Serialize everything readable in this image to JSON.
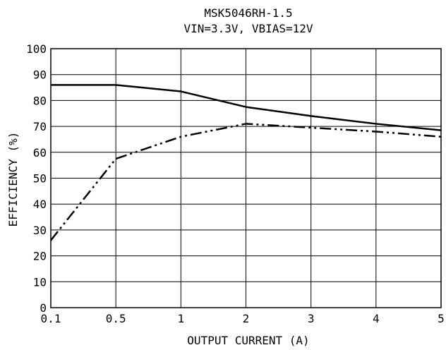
{
  "chart_data": {
    "type": "line",
    "title": "MSK5046RH-1.5",
    "subtitle": "VIN=3.3V, VBIAS=12V",
    "xlabel": "OUTPUT CURRENT (A)",
    "ylabel": "EFFICIENCY (%)",
    "categories": [
      "0.1",
      "0.5",
      "1",
      "2",
      "3",
      "4",
      "5"
    ],
    "yticks": [
      "0",
      "10",
      "20",
      "30",
      "40",
      "50",
      "60",
      "70",
      "80",
      "90",
      "100"
    ],
    "ylim": [
      0,
      100
    ],
    "grid": true,
    "series": [
      {
        "style": "solid",
        "values": [
          86,
          86,
          83.5,
          77.5,
          74,
          71,
          68.5
        ]
      },
      {
        "style": "dash-dot-dot",
        "values": [
          26,
          57.5,
          66,
          71,
          69.5,
          68,
          66
        ]
      }
    ]
  }
}
